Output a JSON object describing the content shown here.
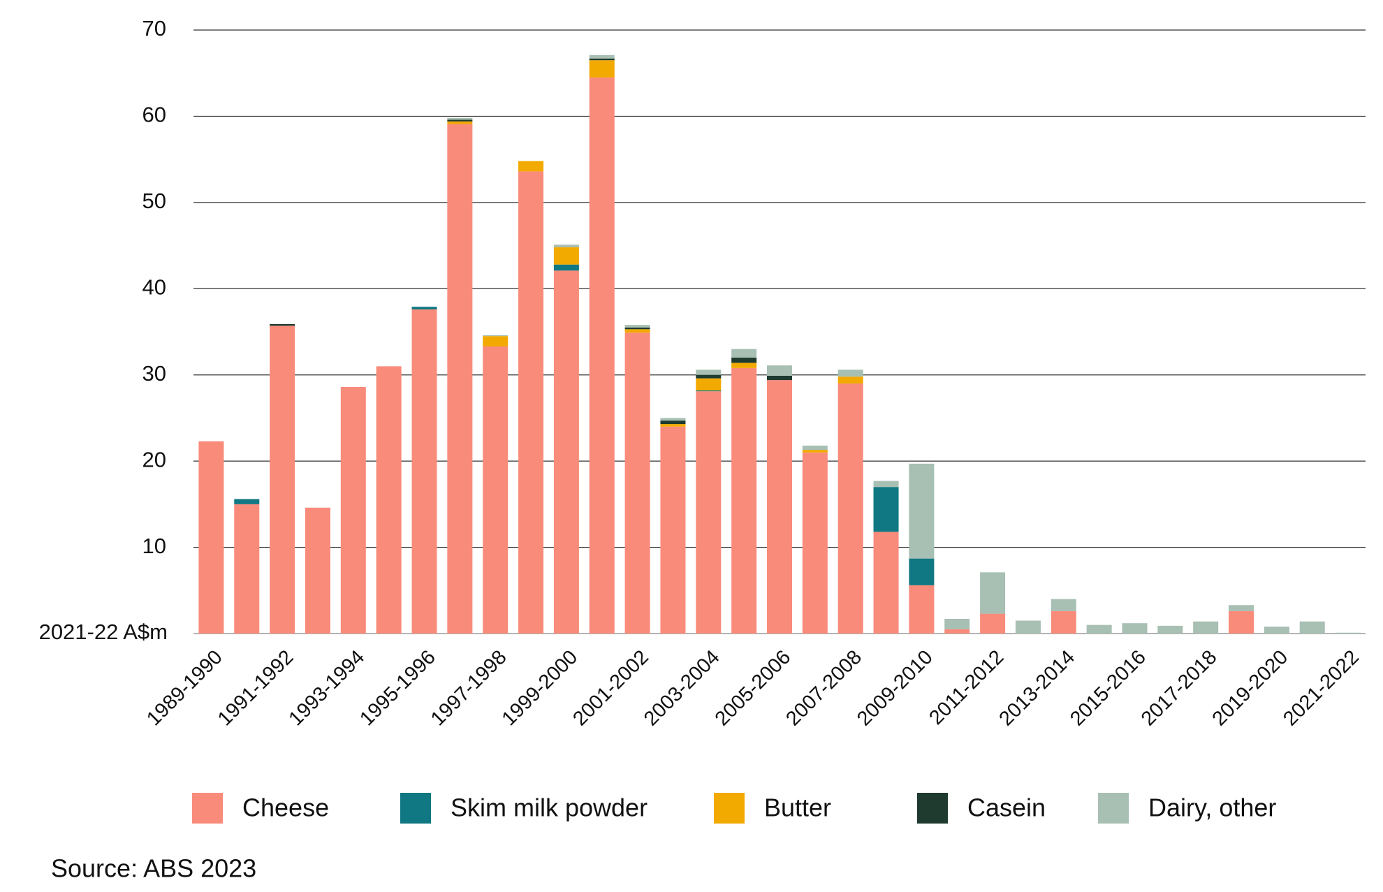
{
  "chart_data": {
    "type": "stacked_bar",
    "categories": [
      "1989-1990",
      null,
      "1991-1992",
      null,
      "1993-1994",
      null,
      "1995-1996",
      null,
      "1997-1998",
      null,
      "1999-2000",
      null,
      "2001-2002",
      null,
      "2003-2004",
      null,
      "2005-2006",
      null,
      "2007-2008",
      null,
      "2009-2010",
      null,
      "2011-2012",
      null,
      "2013-2014",
      null,
      "2015-2016",
      null,
      "2017-2018",
      null,
      "2019-2020",
      null,
      "2021-2022"
    ],
    "series": [
      {
        "name": "Cheese",
        "color": "#f98b7b",
        "values": [
          22.3,
          15.0,
          35.7,
          14.6,
          28.6,
          31.0,
          37.6,
          59.1,
          33.3,
          53.6,
          42.1,
          64.5,
          34.9,
          24.0,
          28.1,
          30.8,
          29.4,
          21.0,
          29.0,
          11.8,
          5.6,
          0.5,
          2.3,
          0,
          2.6,
          0,
          0,
          0,
          0,
          2.6,
          0,
          0,
          0
        ]
      },
      {
        "name": "Skim milk powder",
        "color": "#0f7882",
        "values": [
          0,
          0.6,
          0,
          0,
          0,
          0,
          0.3,
          0,
          0,
          0,
          0.7,
          0,
          0,
          0,
          0.1,
          0,
          0,
          0,
          0,
          5.2,
          3.1,
          0,
          0,
          0,
          0,
          0,
          0,
          0,
          0,
          0,
          0,
          0,
          0
        ]
      },
      {
        "name": "Butter",
        "color": "#f2a900",
        "values": [
          0,
          0,
          0,
          0,
          0,
          0,
          0,
          0.3,
          1.2,
          1.2,
          2.0,
          2.0,
          0.4,
          0.3,
          1.4,
          0.6,
          0,
          0.3,
          0.8,
          0,
          0,
          0,
          0,
          0,
          0,
          0,
          0,
          0,
          0,
          0,
          0,
          0,
          0
        ]
      },
      {
        "name": "Casein",
        "color": "#1f3a2e",
        "values": [
          0,
          0,
          0.2,
          0,
          0,
          0,
          0,
          0.2,
          0,
          0,
          0,
          0.2,
          0.2,
          0.4,
          0.4,
          0.6,
          0.5,
          0,
          0,
          0,
          0,
          0,
          0,
          0,
          0,
          0,
          0,
          0,
          0,
          0,
          0,
          0,
          0
        ]
      },
      {
        "name": "Dairy, other",
        "color": "#a8bfb3",
        "values": [
          0,
          0,
          0,
          0,
          0,
          0,
          0,
          0.2,
          0.1,
          0,
          0.3,
          0.4,
          0.3,
          0.3,
          0.6,
          1.0,
          1.2,
          0.5,
          0.8,
          0.7,
          11.0,
          1.2,
          4.8,
          1.5,
          1.4,
          1.0,
          1.2,
          0.9,
          1.4,
          0.7,
          0.8,
          1.4,
          0.1
        ]
      }
    ],
    "ylim": [
      0,
      70
    ],
    "yticks": [
      {
        "value": 0,
        "label": "2021-22 A$m"
      },
      10,
      20,
      30,
      40,
      50,
      60,
      70
    ],
    "grid": true,
    "source": "Source: ABS 2023"
  }
}
